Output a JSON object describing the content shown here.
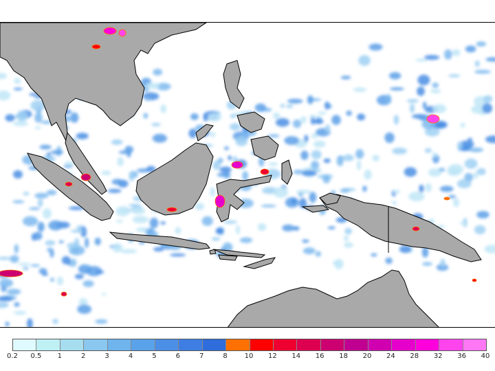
{
  "map": {
    "land_color": "#a9a9a9",
    "coast_color": "#000000",
    "sea_color": "#ffffff"
  },
  "legend": {
    "labels": [
      "0.2",
      "0.5",
      "1",
      "2",
      "3",
      "4",
      "5",
      "6",
      "7",
      "8",
      "10",
      "12",
      "14",
      "16",
      "18",
      "20",
      "24",
      "28",
      "32",
      "36",
      "40"
    ],
    "colors": [
      "#e0fbff",
      "#bff0f4",
      "#a6def0",
      "#8ac8f0",
      "#6fb4ec",
      "#5aa2ea",
      "#4c8fe6",
      "#3e7ee2",
      "#2f6cdc",
      "#ff7000",
      "#ff0000",
      "#ee0030",
      "#dd0050",
      "#cc0070",
      "#c00090",
      "#d000b0",
      "#e600cc",
      "#ff00dd",
      "#ff44ee",
      "#ff77f4"
    ]
  }
}
